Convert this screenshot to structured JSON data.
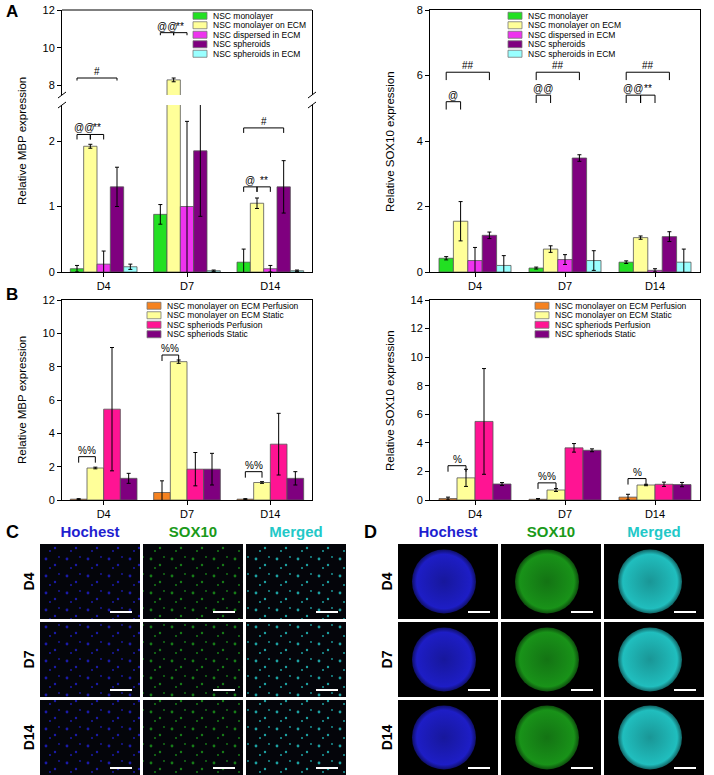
{
  "panel_labels": [
    "A",
    "B",
    "C",
    "D"
  ],
  "chart_data": [
    {
      "type": "bar",
      "y_label": "Relative MBP expression",
      "categories": [
        "D4",
        "D7",
        "D14"
      ],
      "series": [
        {
          "name": "NSC monolayer",
          "color": "#22e022",
          "values": [
            0.05,
            0.88,
            0.15
          ],
          "errors": [
            0.05,
            0.15,
            0.2
          ]
        },
        {
          "name": "NSC monolayer on ECM",
          "color": "#ffff99",
          "values": [
            1.92,
            8.3,
            1.05
          ],
          "errors": [
            0.03,
            0.1,
            0.08
          ]
        },
        {
          "name": "NSC dispersed in ECM",
          "color": "#ee33ee",
          "values": [
            0.12,
            1.0,
            0.05
          ],
          "errors": [
            0.2,
            1.3,
            0.05
          ]
        },
        {
          "name": "NSC spheroids",
          "color": "#7f007f",
          "values": [
            1.3,
            1.85,
            1.3
          ],
          "errors": [
            0.3,
            1.0,
            0.4
          ]
        },
        {
          "name": "NSC spheroids in ECM",
          "color": "#99ffff",
          "values": [
            0.08,
            0.02,
            0.02
          ],
          "errors": [
            0.04,
            0.01,
            0.01
          ]
        }
      ],
      "ylim": [
        [
          0,
          2.55
        ],
        [
          7.5,
          12
        ]
      ],
      "yticks": [
        [
          0,
          1,
          2
        ],
        [
          8,
          10,
          12
        ]
      ],
      "grid": false,
      "legend": "upper right",
      "annotations": [
        {
          "text": "#",
          "category": 0,
          "from": 0,
          "to": 3,
          "y": 8.4
        },
        {
          "text": "@@",
          "category": 0,
          "from": 0,
          "to": 1,
          "y": 2.1
        },
        {
          "text": "**",
          "category": 0,
          "from": 1,
          "to": 2,
          "y": 2.1
        },
        {
          "text": "@@",
          "category": 1,
          "from": 0,
          "to": 1,
          "y": 10.8
        },
        {
          "text": "**",
          "category": 1,
          "from": 1,
          "to": 2,
          "y": 10.8
        },
        {
          "text": "#",
          "category": 2,
          "from": 0,
          "to": 3,
          "y": 2.2
        },
        {
          "text": "@",
          "category": 2,
          "from": 0,
          "to": 1,
          "y": 1.3
        },
        {
          "text": "**",
          "category": 2,
          "from": 1,
          "to": 2,
          "y": 1.3
        }
      ]
    },
    {
      "type": "bar",
      "y_label": "Relative SOX10 expression",
      "categories": [
        "D4",
        "D7",
        "D14"
      ],
      "series": [
        {
          "name": "NSC monolayer",
          "color": "#22e022",
          "values": [
            0.42,
            0.12,
            0.3
          ],
          "errors": [
            0.05,
            0.03,
            0.04
          ]
        },
        {
          "name": "NSC monolayer on ECM",
          "color": "#ffff99",
          "values": [
            1.55,
            0.7,
            1.05
          ],
          "errors": [
            0.6,
            0.1,
            0.05
          ]
        },
        {
          "name": "NSC dispersed in ECM",
          "color": "#ee33ee",
          "values": [
            0.35,
            0.38,
            0.05
          ],
          "errors": [
            0.4,
            0.15,
            0.05
          ]
        },
        {
          "name": "NSC spheroids",
          "color": "#7f007f",
          "values": [
            1.12,
            3.48,
            1.08
          ],
          "errors": [
            0.1,
            0.1,
            0.15
          ]
        },
        {
          "name": "NSC spheroids in ECM",
          "color": "#99ffff",
          "values": [
            0.2,
            0.35,
            0.3
          ],
          "errors": [
            0.3,
            0.3,
            0.4
          ]
        }
      ],
      "ylim": [
        0,
        8
      ],
      "yticks": [
        0,
        2,
        4,
        6,
        8
      ],
      "grid": false,
      "legend": "upper center",
      "annotations": [
        {
          "text": "##",
          "category": 0,
          "from": 0,
          "to": 3,
          "y": 6.1
        },
        {
          "text": "@",
          "category": 0,
          "from": 0,
          "to": 1,
          "y": 5.2
        },
        {
          "text": "##",
          "category": 1,
          "from": 0,
          "to": 3,
          "y": 6.1
        },
        {
          "text": "@@",
          "category": 1,
          "from": 0,
          "to": 1,
          "y": 5.4
        },
        {
          "text": "##",
          "category": 2,
          "from": 0,
          "to": 3,
          "y": 6.1
        },
        {
          "text": "@@",
          "category": 2,
          "from": 0,
          "to": 1,
          "y": 5.4
        },
        {
          "text": "**",
          "category": 2,
          "from": 1,
          "to": 2,
          "y": 5.4
        }
      ]
    },
    {
      "type": "bar",
      "y_label": "Relative MBP expression",
      "categories": [
        "D4",
        "D7",
        "D14"
      ],
      "series": [
        {
          "name": "NSC monolayer on ECM Perfusion",
          "color": "#f58220",
          "values": [
            0.05,
            0.45,
            0.05
          ],
          "errors": [
            0.03,
            0.7,
            0.03
          ]
        },
        {
          "name": "NSC monolayer on ECM Static",
          "color": "#ffff99",
          "values": [
            1.92,
            8.3,
            1.05
          ],
          "errors": [
            0.05,
            0.1,
            0.05
          ]
        },
        {
          "name": "NSC spheriods Perfusion",
          "color": "#ff1493",
          "values": [
            5.45,
            1.85,
            3.35
          ],
          "errors": [
            3.7,
            1.0,
            1.85
          ]
        },
        {
          "name": "NSC spheriods Static",
          "color": "#7f007f",
          "values": [
            1.3,
            1.85,
            1.3
          ],
          "errors": [
            0.3,
            0.95,
            0.4
          ]
        }
      ],
      "ylim": [
        0,
        12
      ],
      "yticks": [
        0,
        2,
        4,
        6,
        8,
        10,
        12
      ],
      "grid": false,
      "legend": "upper right",
      "annotations": [
        {
          "text": "%%",
          "category": 0,
          "from": 0,
          "to": 1,
          "y": 2.6
        },
        {
          "text": "%%",
          "category": 1,
          "from": 0,
          "to": 1,
          "y": 8.7
        },
        {
          "text": "%%",
          "category": 2,
          "from": 0,
          "to": 1,
          "y": 1.7
        }
      ]
    },
    {
      "type": "bar",
      "y_label": "Relative SOX10 expression",
      "categories": [
        "D4",
        "D7",
        "D14"
      ],
      "series": [
        {
          "name": "NSC monolayer on ECM Perfusion",
          "color": "#f58220",
          "values": [
            0.1,
            0.05,
            0.2
          ],
          "errors": [
            0.1,
            0.05,
            0.2
          ]
        },
        {
          "name": "NSC monolayer on ECM Static",
          "color": "#ffff99",
          "values": [
            1.55,
            0.7,
            1.05
          ],
          "errors": [
            0.6,
            0.1,
            0.05
          ]
        },
        {
          "name": "NSC spheriods Perfusion",
          "color": "#ff1493",
          "values": [
            5.5,
            3.65,
            1.1
          ],
          "errors": [
            3.7,
            0.3,
            0.15
          ]
        },
        {
          "name": "NSC spheriods Static",
          "color": "#7f007f",
          "values": [
            1.12,
            3.48,
            1.08
          ],
          "errors": [
            0.1,
            0.1,
            0.15
          ]
        }
      ],
      "ylim": [
        0,
        14
      ],
      "yticks": [
        0,
        2,
        4,
        6,
        8,
        10,
        12,
        14
      ],
      "grid": false,
      "legend": "upper right",
      "annotations": [
        {
          "text": "%",
          "category": 0,
          "from": 0,
          "to": 1,
          "y": 2.4
        },
        {
          "text": "%%",
          "category": 1,
          "from": 0,
          "to": 1,
          "y": 1.2
        },
        {
          "text": "%",
          "category": 2,
          "from": 0,
          "to": 1,
          "y": 1.5
        }
      ]
    }
  ],
  "image_panels": [
    {
      "columns": [
        "Hochest",
        "SOX10",
        "Merged"
      ],
      "rows": [
        "D4",
        "D7",
        "D14"
      ],
      "colors": [
        "#1f1fd0",
        "#1a9a1a",
        "#22c8c8"
      ]
    },
    {
      "columns": [
        "Hochest",
        "SOX10",
        "Merged"
      ],
      "rows": [
        "D4",
        "D7",
        "D14"
      ],
      "colors": [
        "#1f1fd0",
        "#1a9a1a",
        "#22c8c8"
      ]
    }
  ]
}
